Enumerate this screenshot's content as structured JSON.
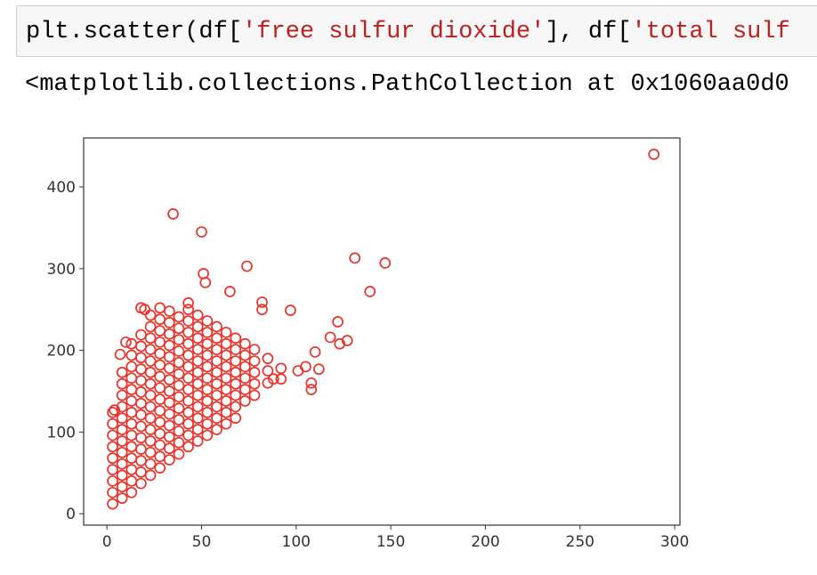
{
  "code_cell": {
    "tokens": [
      "plt.scatter(df[",
      "'free sulfur dioxide'",
      "], df[",
      "'total sulf"
    ]
  },
  "output_text": "<matplotlib.collections.PathCollection at 0x1060aa0d0",
  "chart_data": {
    "type": "scatter",
    "color": "#e8332a",
    "xlim": [
      -12.3,
      302.8
    ],
    "ylim": [
      -14,
      460
    ],
    "xticks": [
      0,
      50,
      100,
      150,
      200,
      250,
      300
    ],
    "yticks": [
      0,
      100,
      200,
      300,
      400
    ],
    "x": [
      3,
      3,
      3,
      3,
      3,
      3,
      3,
      3,
      3,
      8,
      8,
      8,
      8,
      8,
      8,
      8,
      8,
      8,
      8,
      8,
      8,
      13,
      13,
      13,
      13,
      13,
      13,
      13,
      13,
      13,
      13,
      13,
      13,
      13,
      13,
      18,
      18,
      18,
      18,
      18,
      18,
      18,
      18,
      18,
      18,
      18,
      18,
      18,
      18,
      23,
      23,
      23,
      23,
      23,
      23,
      23,
      23,
      23,
      23,
      23,
      23,
      23,
      23,
      23,
      28,
      28,
      28,
      28,
      28,
      28,
      28,
      28,
      28,
      28,
      28,
      28,
      28,
      28,
      28,
      33,
      33,
      33,
      33,
      33,
      33,
      33,
      33,
      33,
      33,
      33,
      33,
      33,
      33,
      38,
      38,
      38,
      38,
      38,
      38,
      38,
      38,
      38,
      38,
      38,
      38,
      38,
      43,
      43,
      43,
      43,
      43,
      43,
      43,
      43,
      43,
      43,
      43,
      43,
      43,
      48,
      48,
      48,
      48,
      48,
      48,
      48,
      48,
      48,
      48,
      48,
      48,
      53,
      53,
      53,
      53,
      53,
      53,
      53,
      53,
      53,
      53,
      53,
      58,
      58,
      58,
      58,
      58,
      58,
      58,
      58,
      58,
      58,
      63,
      63,
      63,
      63,
      63,
      63,
      63,
      63,
      63,
      68,
      68,
      68,
      68,
      68,
      68,
      68,
      68,
      73,
      73,
      73,
      73,
      73,
      73,
      78,
      78,
      78,
      78,
      78,
      85,
      85,
      85,
      92,
      92,
      289,
      35,
      50,
      51,
      52,
      74,
      131,
      147,
      139,
      65,
      97,
      82,
      82,
      122,
      118,
      127,
      123,
      110,
      105,
      112,
      101,
      108,
      108,
      88,
      43,
      20,
      18,
      10,
      7,
      4
    ],
    "y": [
      12,
      26,
      40,
      54,
      68,
      82,
      96,
      110,
      124,
      19,
      33,
      47,
      61,
      75,
      89,
      103,
      117,
      131,
      145,
      159,
      173,
      26,
      40,
      54,
      68,
      82,
      96,
      110,
      124,
      138,
      152,
      166,
      180,
      194,
      208,
      37,
      51,
      65,
      79,
      93,
      107,
      121,
      135,
      149,
      163,
      177,
      191,
      205,
      219,
      47,
      61,
      75,
      89,
      103,
      117,
      131,
      145,
      159,
      173,
      187,
      201,
      215,
      229,
      243,
      56,
      70,
      84,
      98,
      112,
      126,
      140,
      154,
      168,
      182,
      196,
      210,
      224,
      238,
      252,
      66,
      80,
      94,
      108,
      122,
      136,
      150,
      164,
      178,
      192,
      206,
      220,
      234,
      248,
      73,
      87,
      101,
      115,
      129,
      143,
      157,
      171,
      185,
      199,
      213,
      227,
      241,
      82,
      96,
      110,
      124,
      138,
      152,
      166,
      180,
      194,
      208,
      222,
      236,
      250,
      89,
      103,
      117,
      131,
      145,
      159,
      173,
      187,
      201,
      215,
      229,
      243,
      96,
      110,
      124,
      138,
      152,
      166,
      180,
      194,
      208,
      222,
      236,
      103,
      117,
      131,
      145,
      159,
      173,
      187,
      201,
      215,
      229,
      110,
      124,
      138,
      152,
      166,
      180,
      194,
      208,
      222,
      117,
      131,
      145,
      159,
      173,
      187,
      201,
      215,
      138,
      152,
      166,
      180,
      194,
      208,
      145,
      159,
      173,
      187,
      201,
      160,
      175,
      190,
      165,
      178,
      440,
      367,
      345,
      294,
      283,
      303,
      313,
      307,
      272,
      272,
      249,
      259,
      250,
      235,
      216,
      212,
      208,
      198,
      180,
      177,
      175,
      152,
      160,
      165,
      258,
      250,
      252,
      210,
      195,
      127
    ]
  }
}
